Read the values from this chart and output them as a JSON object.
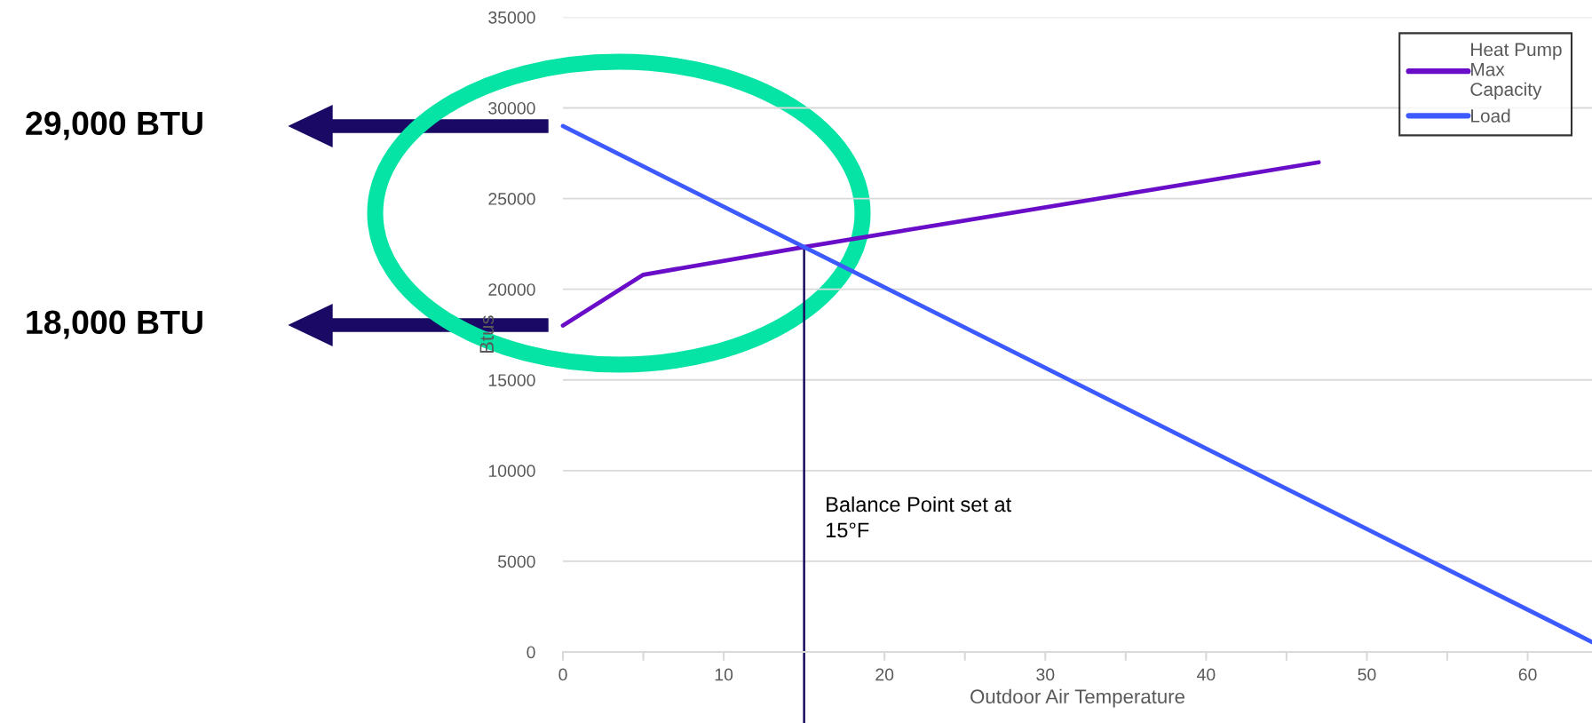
{
  "chart_data": {
    "type": "line",
    "xlabel": "Outdoor Air Temperature",
    "ylabel": "Btus",
    "series": [
      {
        "name": "Heat Pump\nMax\nCapacity",
        "color": "#6a0dc8",
        "x": [
          0,
          5,
          15,
          47
        ],
        "values": [
          18000,
          20800,
          22330,
          27000
        ]
      },
      {
        "name": "Load",
        "color": "#3d5afe",
        "x": [
          0,
          15,
          64
        ],
        "values": [
          29000,
          22330,
          550
        ]
      }
    ],
    "xlim": [
      0,
      64
    ],
    "ylim": [
      0,
      35000
    ],
    "xticks": [
      0,
      {
        "value": 5,
        "label": null
      },
      10,
      {
        "value": 15,
        "label": null
      },
      20,
      {
        "value": 25,
        "label": null
      },
      30,
      {
        "value": 35,
        "label": null
      },
      40,
      {
        "value": 45,
        "label": null
      },
      50,
      {
        "value": 55,
        "label": null
      },
      60
    ],
    "yticks": [
      0,
      5000,
      10000,
      15000,
      20000,
      25000,
      30000,
      35000
    ],
    "grid": "y",
    "legend": "top right",
    "marker": "none",
    "line_style": "solid",
    "ref_lines": [
      {
        "axis": "x",
        "value": 15,
        "label": "Balance Point set at\n15°F",
        "color": "#1a0a5e"
      }
    ],
    "annotations": [
      "29,000 BTU",
      "18,000 BTU"
    ]
  }
}
